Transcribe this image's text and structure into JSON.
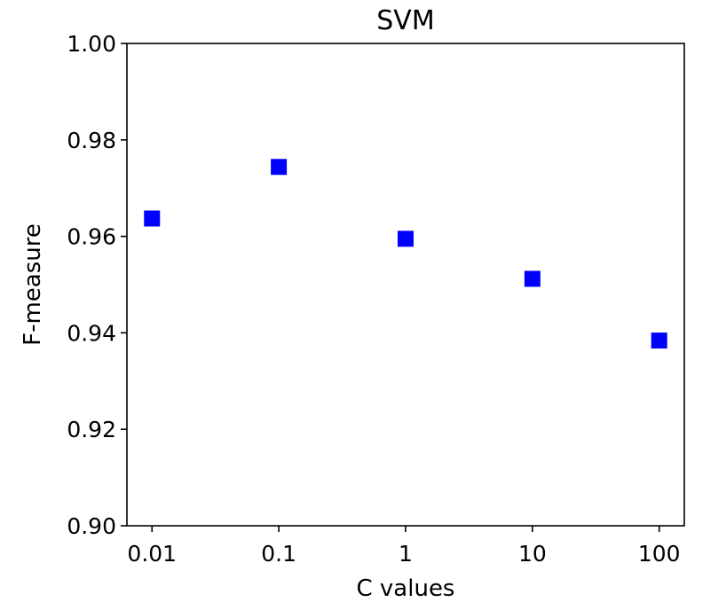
{
  "chart_data": {
    "type": "scatter",
    "title": "SVM",
    "xlabel": "C values",
    "ylabel": "F-measure",
    "x_scale": "log",
    "x": [
      0.01,
      0.1,
      1,
      10,
      100
    ],
    "x_tick_labels": [
      "0.01",
      "0.1",
      "1",
      "10",
      "100"
    ],
    "y": [
      0.9637,
      0.9744,
      0.9595,
      0.9512,
      0.9384
    ],
    "ylim": [
      0.9,
      1.0
    ],
    "y_tick_labels": [
      "0.90",
      "0.92",
      "0.94",
      "0.96",
      "0.98",
      "1.00"
    ],
    "marker": "square",
    "marker_color": "#0000ff",
    "grid": false
  }
}
